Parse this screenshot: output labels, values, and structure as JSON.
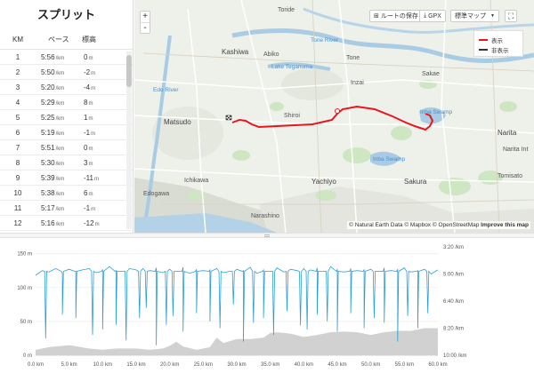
{
  "split": {
    "title": "スプリット",
    "headers": {
      "km": "KM",
      "pace": "ペース",
      "elev": "標高"
    },
    "pace_unit": "/km",
    "elev_unit": "m",
    "rows": [
      {
        "km": "1",
        "pace": "5:56",
        "elev": "0"
      },
      {
        "km": "2",
        "pace": "5:50",
        "elev": "-2"
      },
      {
        "km": "3",
        "pace": "5:20",
        "elev": "-4"
      },
      {
        "km": "4",
        "pace": "5:29",
        "elev": "8"
      },
      {
        "km": "5",
        "pace": "5:25",
        "elev": "1"
      },
      {
        "km": "6",
        "pace": "5:19",
        "elev": "-1"
      },
      {
        "km": "7",
        "pace": "5:51",
        "elev": "0"
      },
      {
        "km": "8",
        "pace": "5:30",
        "elev": "3"
      },
      {
        "km": "9",
        "pace": "5:39",
        "elev": "-11"
      },
      {
        "km": "10",
        "pace": "5:38",
        "elev": "6"
      },
      {
        "km": "11",
        "pace": "5:17",
        "elev": "-1"
      },
      {
        "km": "12",
        "pace": "5:16",
        "elev": "-12"
      }
    ]
  },
  "map": {
    "zoom_in": "+",
    "zoom_out": "-",
    "toolbar": {
      "save_route": "ルートの保存",
      "gpx": "GPX",
      "map_type": "標準マップ"
    },
    "legend": {
      "show": "表示",
      "hide": "非表示"
    },
    "route_color": "#e8161b",
    "attribution": "© Natural Earth Data © Mapbox © OpenStreetMap",
    "improve": "Improve this map",
    "places": {
      "toride": "Toride",
      "kashiwa": "Kashiwa",
      "abiko": "Abiko",
      "tone": "Tone",
      "sakae": "Sakae",
      "inzai": "Inzai",
      "matsudo": "Matsudo",
      "shiroi": "Shiroi",
      "narita": "Narita",
      "ichikawa": "Ichikawa",
      "yachiyo": "Yachiyo",
      "sakura": "Sakura",
      "edogawa": "Edogawa",
      "narashino": "Narashino",
      "tomisato": "Tomisato",
      "narita_int": "Narita Int",
      "tone_river": "Tone River",
      "edo_river": "Edo River",
      "lake_teganuma": "Lake Teganuma",
      "inba_swamp": "Inba Swamp",
      "inba_swamp2": "Inba Swamp"
    }
  },
  "chart_data": {
    "type": "line",
    "x_axis": {
      "unit": "km",
      "range": [
        0,
        60
      ],
      "ticks": [
        "0.0 km",
        "5.0 km",
        "10.0 km",
        "15.0 km",
        "20.0 km",
        "25.0 km",
        "30.0 km",
        "35.0 km",
        "40.0 km",
        "45.0 km",
        "50.0 km",
        "55.0 km",
        "60.0 km"
      ]
    },
    "y_left": {
      "unit": "m",
      "range": [
        0,
        160
      ],
      "ticks": [
        "0 m",
        "50 m",
        "100 m",
        "150 m"
      ]
    },
    "y_right": {
      "unit": "pace",
      "ticks": [
        "3:20 /km",
        "5:00 /km",
        "6:40 /km",
        "8:20 /km",
        "10:00 /km"
      ]
    },
    "series": [
      {
        "kind": "area",
        "color": "#cccccc",
        "x": [
          0,
          2,
          5,
          8,
          10,
          12,
          15,
          17,
          19,
          20,
          21,
          22,
          24,
          26,
          27,
          28,
          30,
          32,
          34,
          35,
          36,
          38,
          40,
          42,
          44,
          46,
          48,
          50,
          52,
          54,
          56,
          58,
          60
        ],
        "y": [
          8,
          12,
          15,
          10,
          8,
          10,
          10,
          8,
          10,
          14,
          20,
          13,
          8,
          12,
          26,
          18,
          24,
          24,
          26,
          33,
          34,
          32,
          27,
          30,
          34,
          35,
          34,
          30,
          34,
          36,
          36,
          40,
          40
        ]
      },
      {
        "kind": "line",
        "color": "#2a9fd6",
        "x": [
          0,
          1,
          2,
          3,
          4,
          5,
          6,
          7,
          8,
          9,
          10,
          11,
          12,
          13,
          14,
          15,
          16,
          17,
          18,
          19,
          20,
          21,
          22,
          23,
          24,
          25,
          26,
          27,
          28,
          29,
          30,
          31,
          32,
          33,
          34,
          35,
          36,
          37,
          38,
          39,
          40,
          41,
          42,
          43,
          44,
          45,
          46,
          47,
          48,
          49,
          50,
          51,
          52,
          53,
          54,
          55,
          56,
          57,
          58,
          59,
          60
        ],
        "y": [
          118,
          125,
          123,
          128,
          121,
          127,
          124,
          126,
          128,
          122,
          126,
          131,
          125,
          124,
          128,
          126,
          128,
          125,
          129,
          122,
          127,
          124,
          130,
          121,
          127,
          125,
          126,
          128,
          122,
          124,
          127,
          125,
          130,
          121,
          126,
          124,
          129,
          123,
          127,
          125,
          128,
          126,
          129,
          124,
          131,
          127,
          123,
          128,
          125,
          126,
          127,
          124,
          129,
          125,
          127,
          129,
          123,
          125,
          127,
          120,
          126
        ]
      }
    ],
    "dips_x": [
      1.5,
      4,
      6,
      8.5,
      10,
      12,
      13.5,
      15.5,
      16.5,
      18,
      19.5,
      20.5,
      22,
      24,
      26,
      27.5,
      29.5,
      31,
      32.5,
      34,
      35.5,
      37.5,
      39.5,
      40.5,
      42,
      43.5,
      45,
      47,
      49,
      50.5,
      52,
      54,
      55.5,
      57,
      58.5
    ],
    "dips_y": [
      25,
      60,
      55,
      30,
      38,
      45,
      22,
      55,
      70,
      15,
      45,
      58,
      35,
      62,
      50,
      40,
      75,
      20,
      48,
      55,
      30,
      65,
      44,
      38,
      60,
      50,
      35,
      62,
      40,
      55,
      48,
      20,
      58,
      40,
      62
    ]
  }
}
